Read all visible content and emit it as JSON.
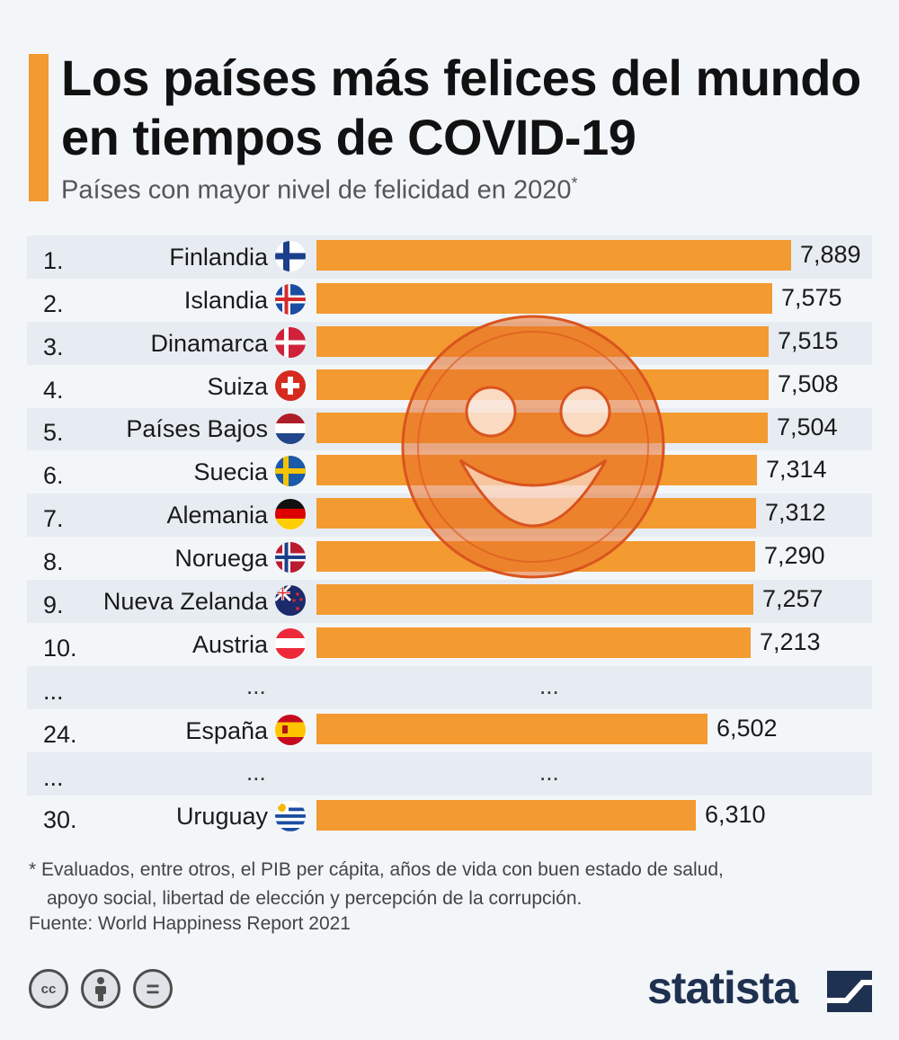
{
  "title": "Los países más felices del mundo en tiempos de COVID-19",
  "subtitle": "Países con mayor nivel de felicidad en 2020",
  "subtitle_mark": "*",
  "colors": {
    "accent": "#f39a31",
    "bar": "#f39a31",
    "brand": "#1f3150"
  },
  "chart_data": {
    "type": "bar",
    "orientation": "horizontal",
    "title": "Los países más felices del mundo en tiempos de COVID-19",
    "subtitle": "Países con mayor nivel de felicidad en 2020*",
    "categories": [
      "Finlandia",
      "Islandia",
      "Dinamarca",
      "Suiza",
      "Países Bajos",
      "Suecia",
      "Alemania",
      "Noruega",
      "Nueva Zelanda",
      "Austria",
      "España",
      "Uruguay"
    ],
    "values": [
      7.889,
      7.575,
      7.515,
      7.508,
      7.504,
      7.314,
      7.312,
      7.29,
      7.257,
      7.213,
      6.502,
      6.31
    ],
    "rows": [
      {
        "rank": "1.",
        "country": "Finlandia",
        "flag": "finland-flag-icon",
        "value": 7.889,
        "label": "7,889"
      },
      {
        "rank": "2.",
        "country": "Islandia",
        "flag": "iceland-flag-icon",
        "value": 7.575,
        "label": "7,575"
      },
      {
        "rank": "3.",
        "country": "Dinamarca",
        "flag": "denmark-flag-icon",
        "value": 7.515,
        "label": "7,515"
      },
      {
        "rank": "4.",
        "country": "Suiza",
        "flag": "switzerland-flag-icon",
        "value": 7.508,
        "label": "7,508"
      },
      {
        "rank": "5.",
        "country": "Países Bajos",
        "flag": "netherlands-flag-icon",
        "value": 7.504,
        "label": "7,504"
      },
      {
        "rank": "6.",
        "country": "Suecia",
        "flag": "sweden-flag-icon",
        "value": 7.314,
        "label": "7,314"
      },
      {
        "rank": "7.",
        "country": "Alemania",
        "flag": "germany-flag-icon",
        "value": 7.312,
        "label": "7,312"
      },
      {
        "rank": "8.",
        "country": "Noruega",
        "flag": "norway-flag-icon",
        "value": 7.29,
        "label": "7,290"
      },
      {
        "rank": "9.",
        "country": "Nueva Zelanda",
        "flag": "new-zealand-flag-icon",
        "value": 7.257,
        "label": "7,257"
      },
      {
        "rank": "10.",
        "country": "Austria",
        "flag": "austria-flag-icon",
        "value": 7.213,
        "label": "7,213"
      },
      {
        "ellipsis": true,
        "rank": "...",
        "country": "...",
        "bar": "..."
      },
      {
        "rank": "24.",
        "country": "España",
        "flag": "spain-flag-icon",
        "value": 6.502,
        "label": "6,502"
      },
      {
        "ellipsis": true,
        "rank": "...",
        "country": "...",
        "bar": "..."
      },
      {
        "rank": "30.",
        "country": "Uruguay",
        "flag": "uruguay-flag-icon",
        "value": 6.31,
        "label": "6,310"
      }
    ],
    "grid": false,
    "legend": "none"
  },
  "footnote_line1": "* Evaluados, entre otros, el PIB per cápita, años de vida con buen estado de salud,",
  "footnote_line2": "apoyo social, libertad de elección y percepción de la corrupción.",
  "source": "Fuente: World Happiness Report 2021",
  "licenses": [
    {
      "icon": "cc-icon",
      "text": "cc"
    },
    {
      "icon": "attribution-icon",
      "text": ""
    },
    {
      "icon": "no-derivatives-icon",
      "text": "="
    }
  ],
  "brand": "statista"
}
